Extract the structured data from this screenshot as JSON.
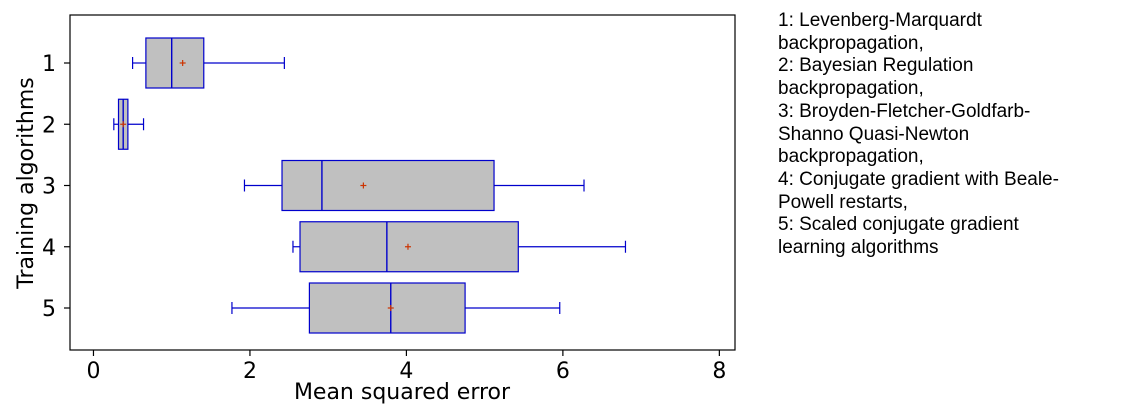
{
  "chart_data": {
    "type": "boxplot",
    "orientation": "horizontal",
    "xlabel": "Mean squared error",
    "ylabel": "Training algorithms",
    "xlim": [
      -0.3,
      8.2
    ],
    "xticks": [
      0,
      2,
      4,
      6,
      8
    ],
    "categories": [
      "1",
      "2",
      "3",
      "4",
      "5"
    ],
    "series": [
      {
        "category": "1",
        "whisker_low": 0.5,
        "q1": 0.67,
        "median": 1.0,
        "q3": 1.41,
        "whisker_high": 2.44,
        "mean": 1.14
      },
      {
        "category": "2",
        "whisker_low": 0.26,
        "q1": 0.32,
        "median": 0.38,
        "q3": 0.44,
        "whisker_high": 0.64,
        "mean": 0.38
      },
      {
        "category": "3",
        "whisker_low": 1.93,
        "q1": 2.41,
        "median": 2.92,
        "q3": 5.12,
        "whisker_high": 6.27,
        "mean": 3.45
      },
      {
        "category": "4",
        "whisker_low": 2.55,
        "q1": 2.64,
        "median": 3.75,
        "q3": 5.43,
        "whisker_high": 6.8,
        "mean": 4.02
      },
      {
        "category": "5",
        "whisker_low": 1.77,
        "q1": 2.76,
        "median": 3.8,
        "q3": 4.75,
        "whisker_high": 5.96,
        "mean": 3.8
      }
    ],
    "colors": {
      "box_fill": "#c0c0c0",
      "box_stroke": "#0000cc",
      "mean_marker": "#cc3300",
      "axis": "#000000"
    },
    "grid": false,
    "legend": {
      "placement": "right",
      "lines": [
        "1: Levenberg-Marquardt",
        "backpropagation,",
        "2: Bayesian Regulation",
        "backpropagation,",
        "3: Broyden-Fletcher-Goldfarb-",
        "Shanno Quasi-Newton",
        "backpropagation,",
        "4: Conjugate gradient with Beale-",
        "Powell restarts,",
        "5: Scaled conjugate gradient",
        "learning algorithms"
      ]
    }
  }
}
